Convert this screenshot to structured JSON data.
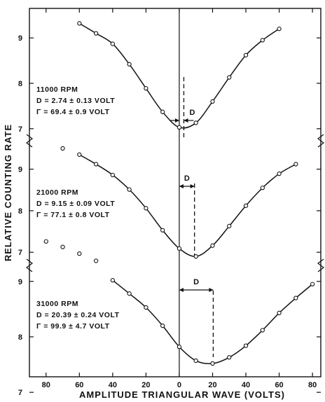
{
  "chart_data": {
    "type": "scatter",
    "xlabel": "AMPLITUDE TRIANGULAR WAVE (VOLTS)",
    "ylabel": "RELATIVE COUNTING RATE",
    "x_tick_labels": [
      "80",
      "60",
      "40",
      "20",
      "0",
      "20",
      "40",
      "60",
      "80"
    ],
    "x_tick_values": [
      -80,
      -60,
      -40,
      -20,
      0,
      20,
      40,
      60,
      80
    ],
    "xlim": [
      -90,
      85
    ],
    "y_tick_labels": [
      "7",
      "8",
      "9"
    ],
    "y_tick_values": [
      7,
      8,
      9
    ],
    "panels": [
      {
        "ylim": [
          6.75,
          9.65
        ],
        "rpm_label": "11000 RPM",
        "d_text": "D = 2.74 ± 0.13 VOLT",
        "gamma_text": "Γ = 69.4 ± 0.9 VOLT",
        "d_marker": "D",
        "d_value": 2.74,
        "points": {
          "x": [
            -60,
            -50,
            -40,
            -30,
            -20,
            -10,
            0,
            10,
            20,
            30,
            40,
            50,
            60
          ],
          "y": [
            9.32,
            9.1,
            8.87,
            8.42,
            7.89,
            7.37,
            7.03,
            7.13,
            7.6,
            8.13,
            8.62,
            8.95,
            9.2
          ]
        },
        "extra_points": {
          "x": [],
          "y": []
        }
      },
      {
        "ylim": [
          6.7,
          9.7
        ],
        "rpm_label": "21000 RPM",
        "d_text": "D = 9.15 ± 0.09 VOLT",
        "gamma_text": "Γ = 77.1 ± 0.8 VOLT",
        "d_marker": "D",
        "d_value": 9.15,
        "points": {
          "x": [
            -60,
            -50,
            -40,
            -30,
            -20,
            -10,
            0,
            10,
            20,
            30,
            40,
            50,
            60,
            70
          ],
          "y": [
            9.35,
            9.12,
            8.86,
            8.51,
            8.06,
            7.53,
            7.09,
            6.9,
            7.16,
            7.63,
            8.12,
            8.55,
            8.89,
            9.12
          ]
        },
        "extra_points": {
          "x": [
            -70
          ],
          "y": [
            9.5
          ]
        }
      },
      {
        "ylim": [
          7.28,
          9.3
        ],
        "rpm_label": "31000 RPM",
        "d_text": "D = 20.39 ± 0.24 VOLT",
        "gamma_text": "Γ = 99.9 ± 4.7 VOLT",
        "d_marker": "D",
        "d_value": 20.39,
        "points": {
          "x": [
            -40,
            -30,
            -20,
            -10,
            0,
            10,
            20,
            30,
            40,
            50,
            60,
            70,
            80
          ],
          "y": [
            9.02,
            8.78,
            8.53,
            8.2,
            7.82,
            7.57,
            7.52,
            7.63,
            7.84,
            8.12,
            8.43,
            8.7,
            8.95
          ]
        },
        "extra_points": {
          "x": [
            -80,
            -70,
            -60,
            -50
          ],
          "y": [
            9.72,
            9.62,
            9.5,
            9.37
          ]
        }
      }
    ]
  }
}
